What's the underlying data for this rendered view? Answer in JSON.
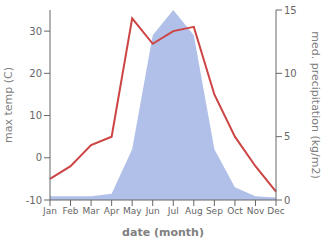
{
  "chart_data": {
    "type": "line",
    "xlabel": "date (month)",
    "ylabel": "max temp (C)",
    "y2label": "med. precipitation (kg/m2)",
    "categories": [
      "Jan",
      "Feb",
      "Mar",
      "Apr",
      "May",
      "Jun",
      "Jul",
      "Aug",
      "Sep",
      "Oct",
      "Nov",
      "Dec"
    ],
    "series": [
      {
        "type": "area",
        "axis": "y2",
        "color": "#b0c0e8",
        "values": [
          0.3,
          0.3,
          0.3,
          0.5,
          4,
          13,
          15,
          13,
          4,
          1.0,
          0.3,
          0.2
        ]
      },
      {
        "type": "line",
        "color": "#cc4444",
        "values": [
          -5,
          -2,
          3,
          5,
          33,
          27,
          30,
          31,
          15,
          5,
          -2,
          -8
        ]
      }
    ],
    "ylim": [
      -10,
      35
    ],
    "yticks": [
      -10,
      0,
      10,
      20,
      30
    ],
    "y2lim": [
      0,
      15
    ],
    "y2ticks": [
      0,
      5,
      10,
      15
    ]
  }
}
